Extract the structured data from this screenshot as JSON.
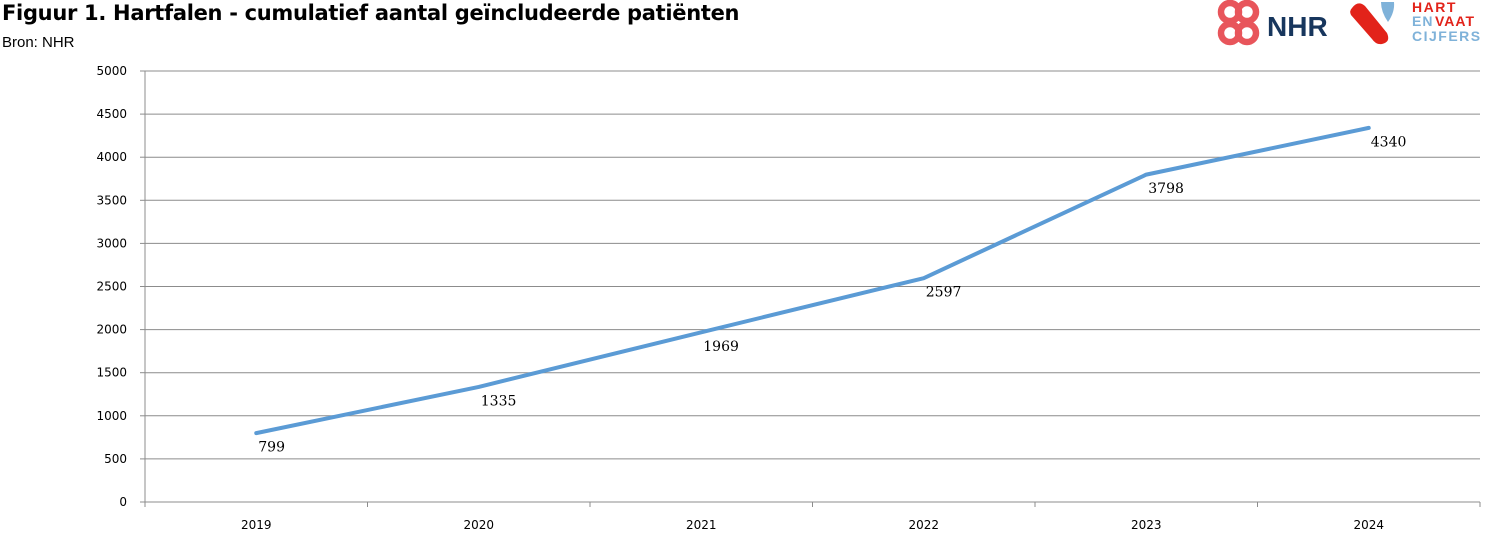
{
  "header": {
    "title": "Figuur 1. Hartfalen - cumulatief aantal geïncludeerde patiënten",
    "source": "Bron: NHR"
  },
  "logos": {
    "nhr_text": "NHR",
    "hv_line1": "HART",
    "hv_line2a": "EN",
    "hv_line2b": "VAAT",
    "hv_line3": "CIJFERS",
    "colors": {
      "nhr_red": "#e8555b",
      "nhr_navy": "#17365d",
      "hv_red": "#e2231a",
      "hv_blue": "#7fb2d9",
      "hv_text_red": "#e2231a",
      "hv_text_blue": "#7fb2d9"
    }
  },
  "chart_data": {
    "type": "line",
    "title": "",
    "xlabel": "",
    "ylabel": "",
    "categories": [
      "2019",
      "2020",
      "2021",
      "2022",
      "2023",
      "2024"
    ],
    "series": [
      {
        "values": [
          799,
          1335,
          1969,
          2597,
          3798,
          4340
        ],
        "color": "#5b9bd5"
      }
    ],
    "ylim": [
      0,
      5000
    ],
    "yticks": [
      0,
      500,
      1000,
      1500,
      2000,
      2500,
      3000,
      3500,
      4000,
      4500,
      5000
    ],
    "grid": true,
    "data_labels": true,
    "legend": "none"
  }
}
